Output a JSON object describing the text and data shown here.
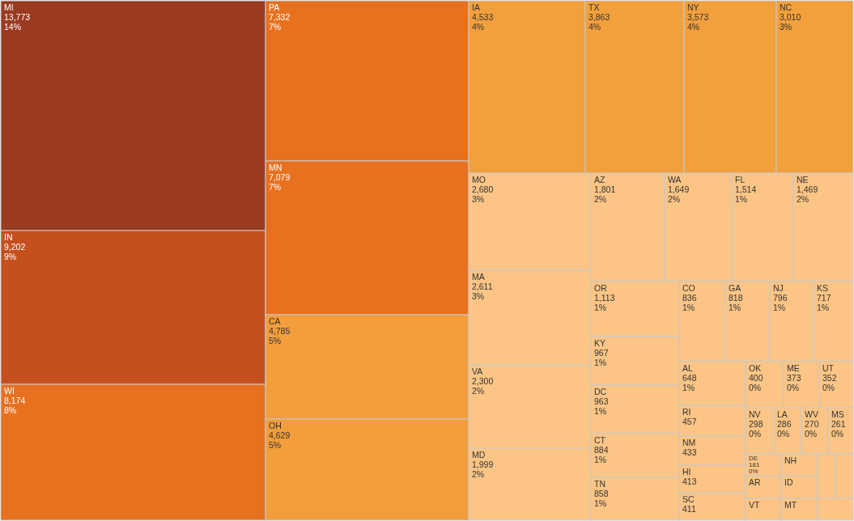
{
  "chart_data": {
    "type": "other",
    "categories": [
      "MI",
      "IN",
      "WI",
      "PA",
      "MN",
      "CA",
      "OH",
      "IA",
      "TX",
      "NY",
      "NC",
      "MO",
      "MA",
      "VA",
      "MD",
      "AZ",
      "WA",
      "FL",
      "NE",
      "OR",
      "KY",
      "DC",
      "CT",
      "TN",
      "CO",
      "GA",
      "NJ",
      "KS",
      "AL",
      "RI",
      "NM",
      "HI",
      "SC",
      "OK",
      "ME",
      "UT",
      "NV",
      "LA",
      "WV",
      "MS",
      "DE",
      "AR",
      "VT",
      "NH",
      "ID",
      "MT",
      null,
      null,
      null
    ],
    "values": [
      13773,
      9202,
      8174,
      7332,
      7079,
      4785,
      4629,
      4533,
      3863,
      3573,
      3010,
      2680,
      2611,
      2300,
      1999,
      1801,
      1649,
      1514,
      1469,
      1113,
      967,
      963,
      884,
      858,
      836,
      818,
      796,
      717,
      648,
      457,
      433,
      413,
      411,
      400,
      373,
      352,
      298,
      286,
      270,
      261,
      181,
      null,
      null,
      null,
      null,
      null,
      null,
      null,
      null
    ],
    "value_labels": [
      "13,773\n14%",
      "9,202\n9%",
      "8,174\n8%",
      "7,332\n7%",
      "7,079\n7%",
      "4,785\n5%",
      "4,629\n5%",
      "4,533\n4%",
      "3,863\n4%",
      "3,573\n4%",
      "3,010\n3%",
      "2,680\n3%",
      "2,611\n3%",
      "2,300\n2%",
      "1,999\n2%",
      "1,801\n2%",
      "1,649\n2%",
      "1,514\n1%",
      "1,469\n2%",
      "1,113\n1%",
      "967\n1%",
      "963\n1%",
      "884\n1%",
      "858\n1%",
      "836\n1%",
      "818\n1%",
      "796\n1%",
      "717\n1%",
      "648\n1%",
      "457",
      "433",
      "413",
      "411",
      "400\n0%",
      "373\n0%",
      "352\n0%",
      "298\n0%",
      "286\n0%",
      "270\n0%",
      "261\n0%",
      "181\n0%",
      null,
      null,
      null,
      null,
      null,
      null,
      null,
      null
    ],
    "colors": [
      "#9a3a20",
      "#c4501f",
      "#e8711f",
      "#e8711f",
      "#e8711f",
      "#f29e3c",
      "#f29e3c",
      "#f2a03c",
      "#f2a03c",
      "#f2a03c",
      "#f2a03c",
      "#fcc585",
      "#fcc585",
      "#fcc585",
      "#fcc585",
      "#fcc585",
      "#fcc585",
      "#fcc585",
      "#fcc585",
      "#fcc585",
      "#fcc585",
      "#fcc585",
      "#fcc585",
      "#fcc585",
      "#fcc585",
      "#fcc585",
      "#fcc585",
      "#fcc585",
      "#fcc585",
      "#fcc585",
      "#fcc585",
      "#fcc585",
      "#fcc585",
      "#fcc585",
      "#fcc585",
      "#fcc585",
      "#fcc585",
      "#fcc585",
      "#fcc585",
      "#fcc585",
      "#fcc585",
      "#fcc585",
      "#fcc585",
      "#fcc585",
      "#fcc585",
      "#fcc585",
      "#fcc585",
      "#fcc585",
      "#fcc585"
    ]
  }
}
